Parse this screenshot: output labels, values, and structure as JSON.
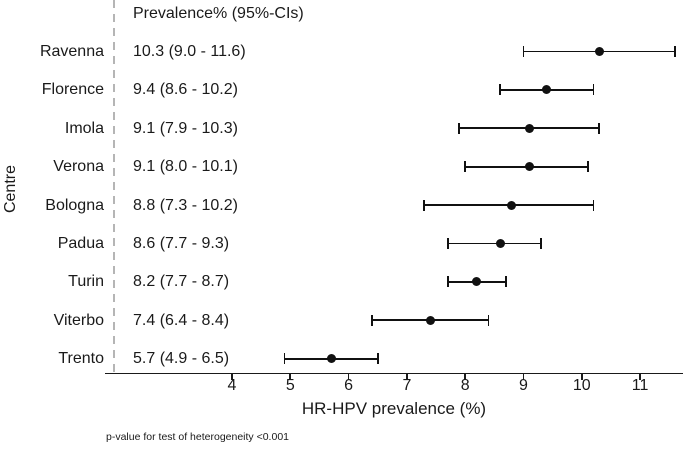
{
  "figure": {
    "column_header": "Prevalence% (95%-CIs)",
    "y_axis_label": "Centre",
    "x_axis_label": "HR-HPV prevalence (%)",
    "footnote": "p-value for test of heterogeneity <0.001"
  },
  "colors": {
    "marker": "#111111",
    "text": "#1a1a1a",
    "axis": "#1a1a1a",
    "dashed_separator": "#b5b5b5",
    "background": "#ffffff"
  },
  "chart_data": {
    "type": "scatter",
    "variant": "forest-plot-with-error-bars",
    "title": "",
    "xlabel": "HR-HPV prevalence (%)",
    "ylabel": "Centre",
    "value_column_header": "Prevalence% (95%-CIs)",
    "x_ticks": [
      4,
      5,
      6,
      7,
      8,
      9,
      10,
      11
    ],
    "xlim": [
      1.8,
      11.75
    ],
    "grid": false,
    "legend": false,
    "rows": [
      {
        "centre": "Ravenna",
        "estimate": 10.3,
        "ci_low": 9.0,
        "ci_high": 11.6,
        "display": "10.3 (9.0 - 11.6)"
      },
      {
        "centre": "Florence",
        "estimate": 9.4,
        "ci_low": 8.6,
        "ci_high": 10.2,
        "display": "9.4 (8.6 - 10.2)"
      },
      {
        "centre": "Imola",
        "estimate": 9.1,
        "ci_low": 7.9,
        "ci_high": 10.3,
        "display": "9.1 (7.9 - 10.3)"
      },
      {
        "centre": "Verona",
        "estimate": 9.1,
        "ci_low": 8.0,
        "ci_high": 10.1,
        "display": "9.1 (8.0 - 10.1)"
      },
      {
        "centre": "Bologna",
        "estimate": 8.8,
        "ci_low": 7.3,
        "ci_high": 10.2,
        "display": "8.8 (7.3 - 10.2)"
      },
      {
        "centre": "Padua",
        "estimate": 8.6,
        "ci_low": 7.7,
        "ci_high": 9.3,
        "display": "8.6 (7.7 - 9.3)"
      },
      {
        "centre": "Turin",
        "estimate": 8.2,
        "ci_low": 7.7,
        "ci_high": 8.7,
        "display": "8.2 (7.7 - 8.7)"
      },
      {
        "centre": "Viterbo",
        "estimate": 7.4,
        "ci_low": 6.4,
        "ci_high": 8.4,
        "display": "7.4 (6.4 - 8.4)"
      },
      {
        "centre": "Trento",
        "estimate": 5.7,
        "ci_low": 4.9,
        "ci_high": 6.5,
        "display": "5.7 (4.9 - 6.5)"
      }
    ],
    "footnote": "p-value for test of heterogeneity <0.001"
  }
}
